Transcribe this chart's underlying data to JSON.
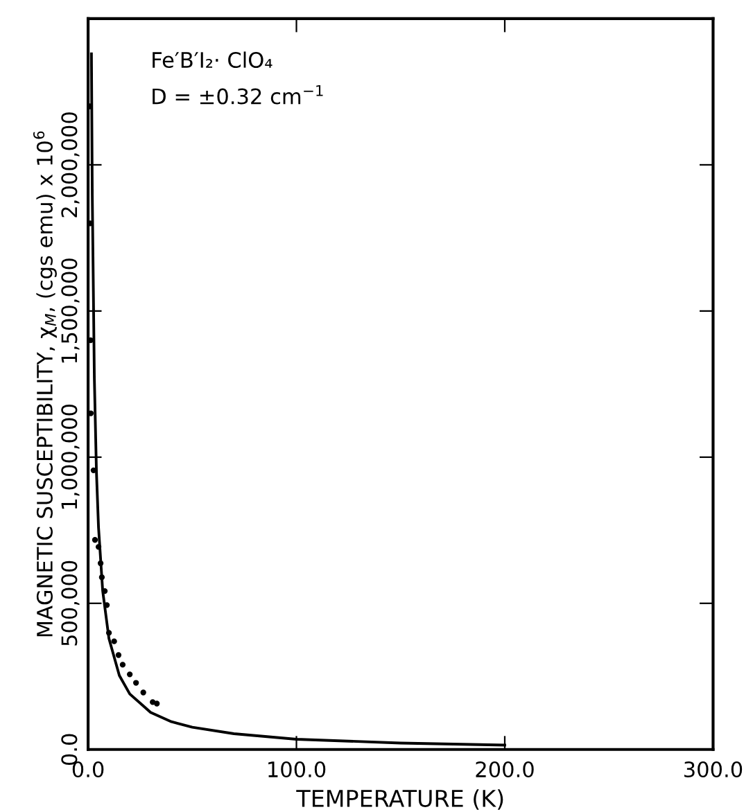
{
  "chart_data": {
    "type": "scatter",
    "xlabel": "TEMPERATURE (K)",
    "ylabel": "MAGNETIC SUSCEPTIBILITY, χ$_{M}$, (cgs emu) x 10$^{6}$",
    "annotations": [
      "Fe′B′I₂· ClO₄",
      "D = ±0.32 cm$^{−1}$"
    ],
    "xlim": [
      0,
      300
    ],
    "ylim": [
      0,
      2500000
    ],
    "xticks": [
      {
        "value": 0,
        "label": "0.0"
      },
      {
        "value": 100,
        "label": "100.0"
      },
      {
        "value": 200,
        "label": "200.0"
      },
      {
        "value": 300,
        "label": "300.0"
      }
    ],
    "yticks": [
      {
        "value": 0,
        "label": "0.0"
      },
      {
        "value": 500000,
        "label": "500,000"
      },
      {
        "value": 1000000,
        "label": "1,000,000"
      },
      {
        "value": 1500000,
        "label": "1,500,000"
      },
      {
        "value": 2000000,
        "label": "2,000,000"
      }
    ],
    "grid": false,
    "legend": false,
    "series": [
      {
        "marker": "circle",
        "color": "#000000",
        "x": [
          0.8,
          1.0,
          1.2,
          1.3,
          2.6,
          3.3,
          5,
          6,
          6.6,
          8,
          9,
          10,
          12.5,
          14.6,
          16.6,
          20,
          23,
          26.5,
          31,
          33
        ],
        "values": [
          2200000,
          1800000,
          1400000,
          1150000,
          955000,
          717000,
          693000,
          637000,
          589000,
          542000,
          494000,
          399000,
          370000,
          323000,
          290000,
          257000,
          228000,
          195000,
          162000,
          157000
        ]
      },
      {
        "type": "line",
        "line_style": "solid",
        "color": "#000000",
        "x": [
          1.6,
          2,
          3,
          4,
          5,
          7,
          10,
          15,
          20,
          30,
          40,
          50,
          70,
          100,
          150,
          200
        ],
        "values": [
          2380000,
          1900000,
          1270000,
          950000,
          760000,
          543000,
          380000,
          253000,
          190000,
          127000,
          95000,
          76000,
          54000,
          35000,
          22000,
          15000
        ]
      }
    ]
  }
}
